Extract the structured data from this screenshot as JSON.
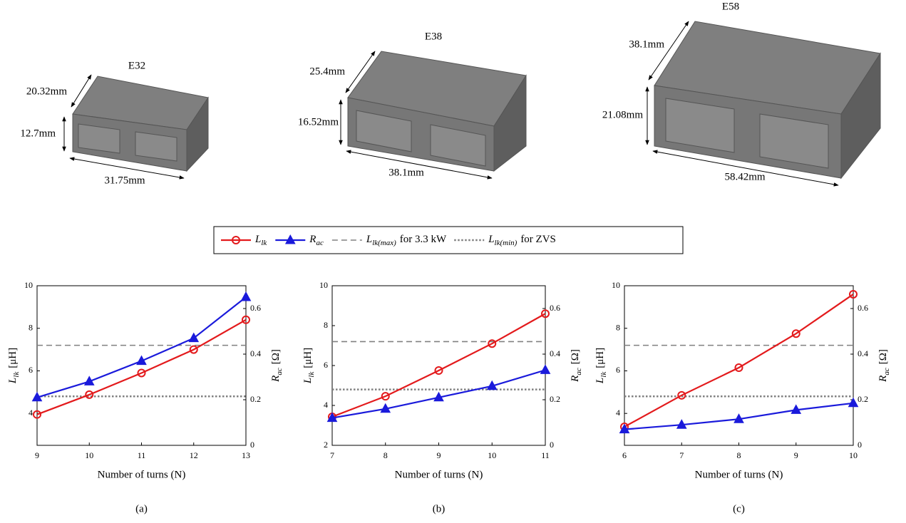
{
  "cores": [
    {
      "name": "E32",
      "depth": "20.32mm",
      "height": "12.7mm",
      "width": "31.75mm"
    },
    {
      "name": "E38",
      "depth": "25.4mm",
      "height": "16.52mm",
      "width": "38.1mm"
    },
    {
      "name": "E58",
      "depth": "38.1mm",
      "height": "21.08mm",
      "width": "58.42mm"
    }
  ],
  "chart_data": [
    {
      "type": "line",
      "caption": "(a)",
      "x_label": "Number of turns (N)",
      "y_label": {
        "symbol": "L",
        "subscript": "lk",
        "unit": "[μH]"
      },
      "y2_label": {
        "symbol": "R",
        "subscript": "ac",
        "unit": "[Ω]"
      },
      "x": [
        9,
        10,
        11,
        12,
        13
      ],
      "xlim": [
        9,
        13
      ],
      "xticks": [
        9,
        10,
        11,
        12,
        13
      ],
      "ylim": [
        2.5,
        10
      ],
      "yticks": [
        4,
        6,
        8,
        10
      ],
      "y2lim": [
        0,
        0.7
      ],
      "y2ticks": [
        0,
        0.2,
        0.4,
        0.6
      ],
      "series": [
        {
          "name": "L",
          "subscript": "lk",
          "color": "#e31a1c",
          "marker": "circle",
          "values": [
            3.95,
            4.88,
            5.9,
            7.0,
            8.4
          ]
        },
        {
          "name": "R",
          "subscript": "ac",
          "color": "#1a1adb",
          "marker": "triangle",
          "axis": "y2",
          "values": [
            0.21,
            0.28,
            0.37,
            0.47,
            0.65
          ]
        }
      ],
      "ref_lines": [
        {
          "name": "L",
          "subscript": "lk(max)",
          "suffix": "for 3.3 kW",
          "value": 7.2,
          "style": "dashed",
          "color": "#808080"
        },
        {
          "name": "L",
          "subscript": "lk(min)",
          "suffix": "for ZVS",
          "value": 4.8,
          "style": "dotted",
          "color": "#808080"
        }
      ]
    },
    {
      "type": "line",
      "caption": "(b)",
      "x_label": "Number of turns (N)",
      "y_label": {
        "symbol": "L",
        "subscript": "lk",
        "unit": "[μH]"
      },
      "y2_label": {
        "symbol": "R",
        "subscript": "ac",
        "unit": "[Ω]"
      },
      "x": [
        7,
        8,
        9,
        10,
        11
      ],
      "xlim": [
        7,
        11
      ],
      "xticks": [
        7,
        8,
        9,
        10,
        11
      ],
      "ylim": [
        2,
        10
      ],
      "yticks": [
        2,
        4,
        6,
        8,
        10
      ],
      "y2lim": [
        0,
        0.7
      ],
      "y2ticks": [
        0,
        0.2,
        0.4,
        0.6
      ],
      "series": [
        {
          "color": "#e31a1c",
          "marker": "circle",
          "values": [
            3.43,
            4.46,
            5.75,
            7.1,
            8.6
          ]
        },
        {
          "color": "#1a1adb",
          "marker": "triangle",
          "axis": "y2",
          "values": [
            0.12,
            0.16,
            0.21,
            0.26,
            0.33
          ]
        }
      ],
      "ref_lines": [
        {
          "value": 7.2,
          "style": "dashed",
          "color": "#808080"
        },
        {
          "value": 4.8,
          "style": "dotted",
          "color": "#808080"
        }
      ]
    },
    {
      "type": "line",
      "caption": "(c)",
      "x_label": "Number of turns (N)",
      "y_label": {
        "symbol": "L",
        "subscript": "lk",
        "unit": "[μH]"
      },
      "y2_label": {
        "symbol": "R",
        "subscript": "ac",
        "unit": "[Ω]"
      },
      "x": [
        6,
        7,
        8,
        9,
        10
      ],
      "xlim": [
        6,
        10
      ],
      "xticks": [
        6,
        7,
        8,
        9,
        10
      ],
      "ylim": [
        2.5,
        10
      ],
      "yticks": [
        4,
        6,
        8,
        10
      ],
      "y2lim": [
        0,
        0.7
      ],
      "y2ticks": [
        0,
        0.2,
        0.4,
        0.6
      ],
      "series": [
        {
          "color": "#e31a1c",
          "marker": "circle",
          "values": [
            3.37,
            4.85,
            6.15,
            7.75,
            9.6
          ]
        },
        {
          "color": "#1a1adb",
          "marker": "triangle",
          "axis": "y2",
          "values": [
            0.07,
            0.09,
            0.115,
            0.155,
            0.185
          ]
        }
      ],
      "ref_lines": [
        {
          "value": 7.2,
          "style": "dashed",
          "color": "#808080"
        },
        {
          "value": 4.8,
          "style": "dotted",
          "color": "#808080"
        }
      ]
    }
  ]
}
